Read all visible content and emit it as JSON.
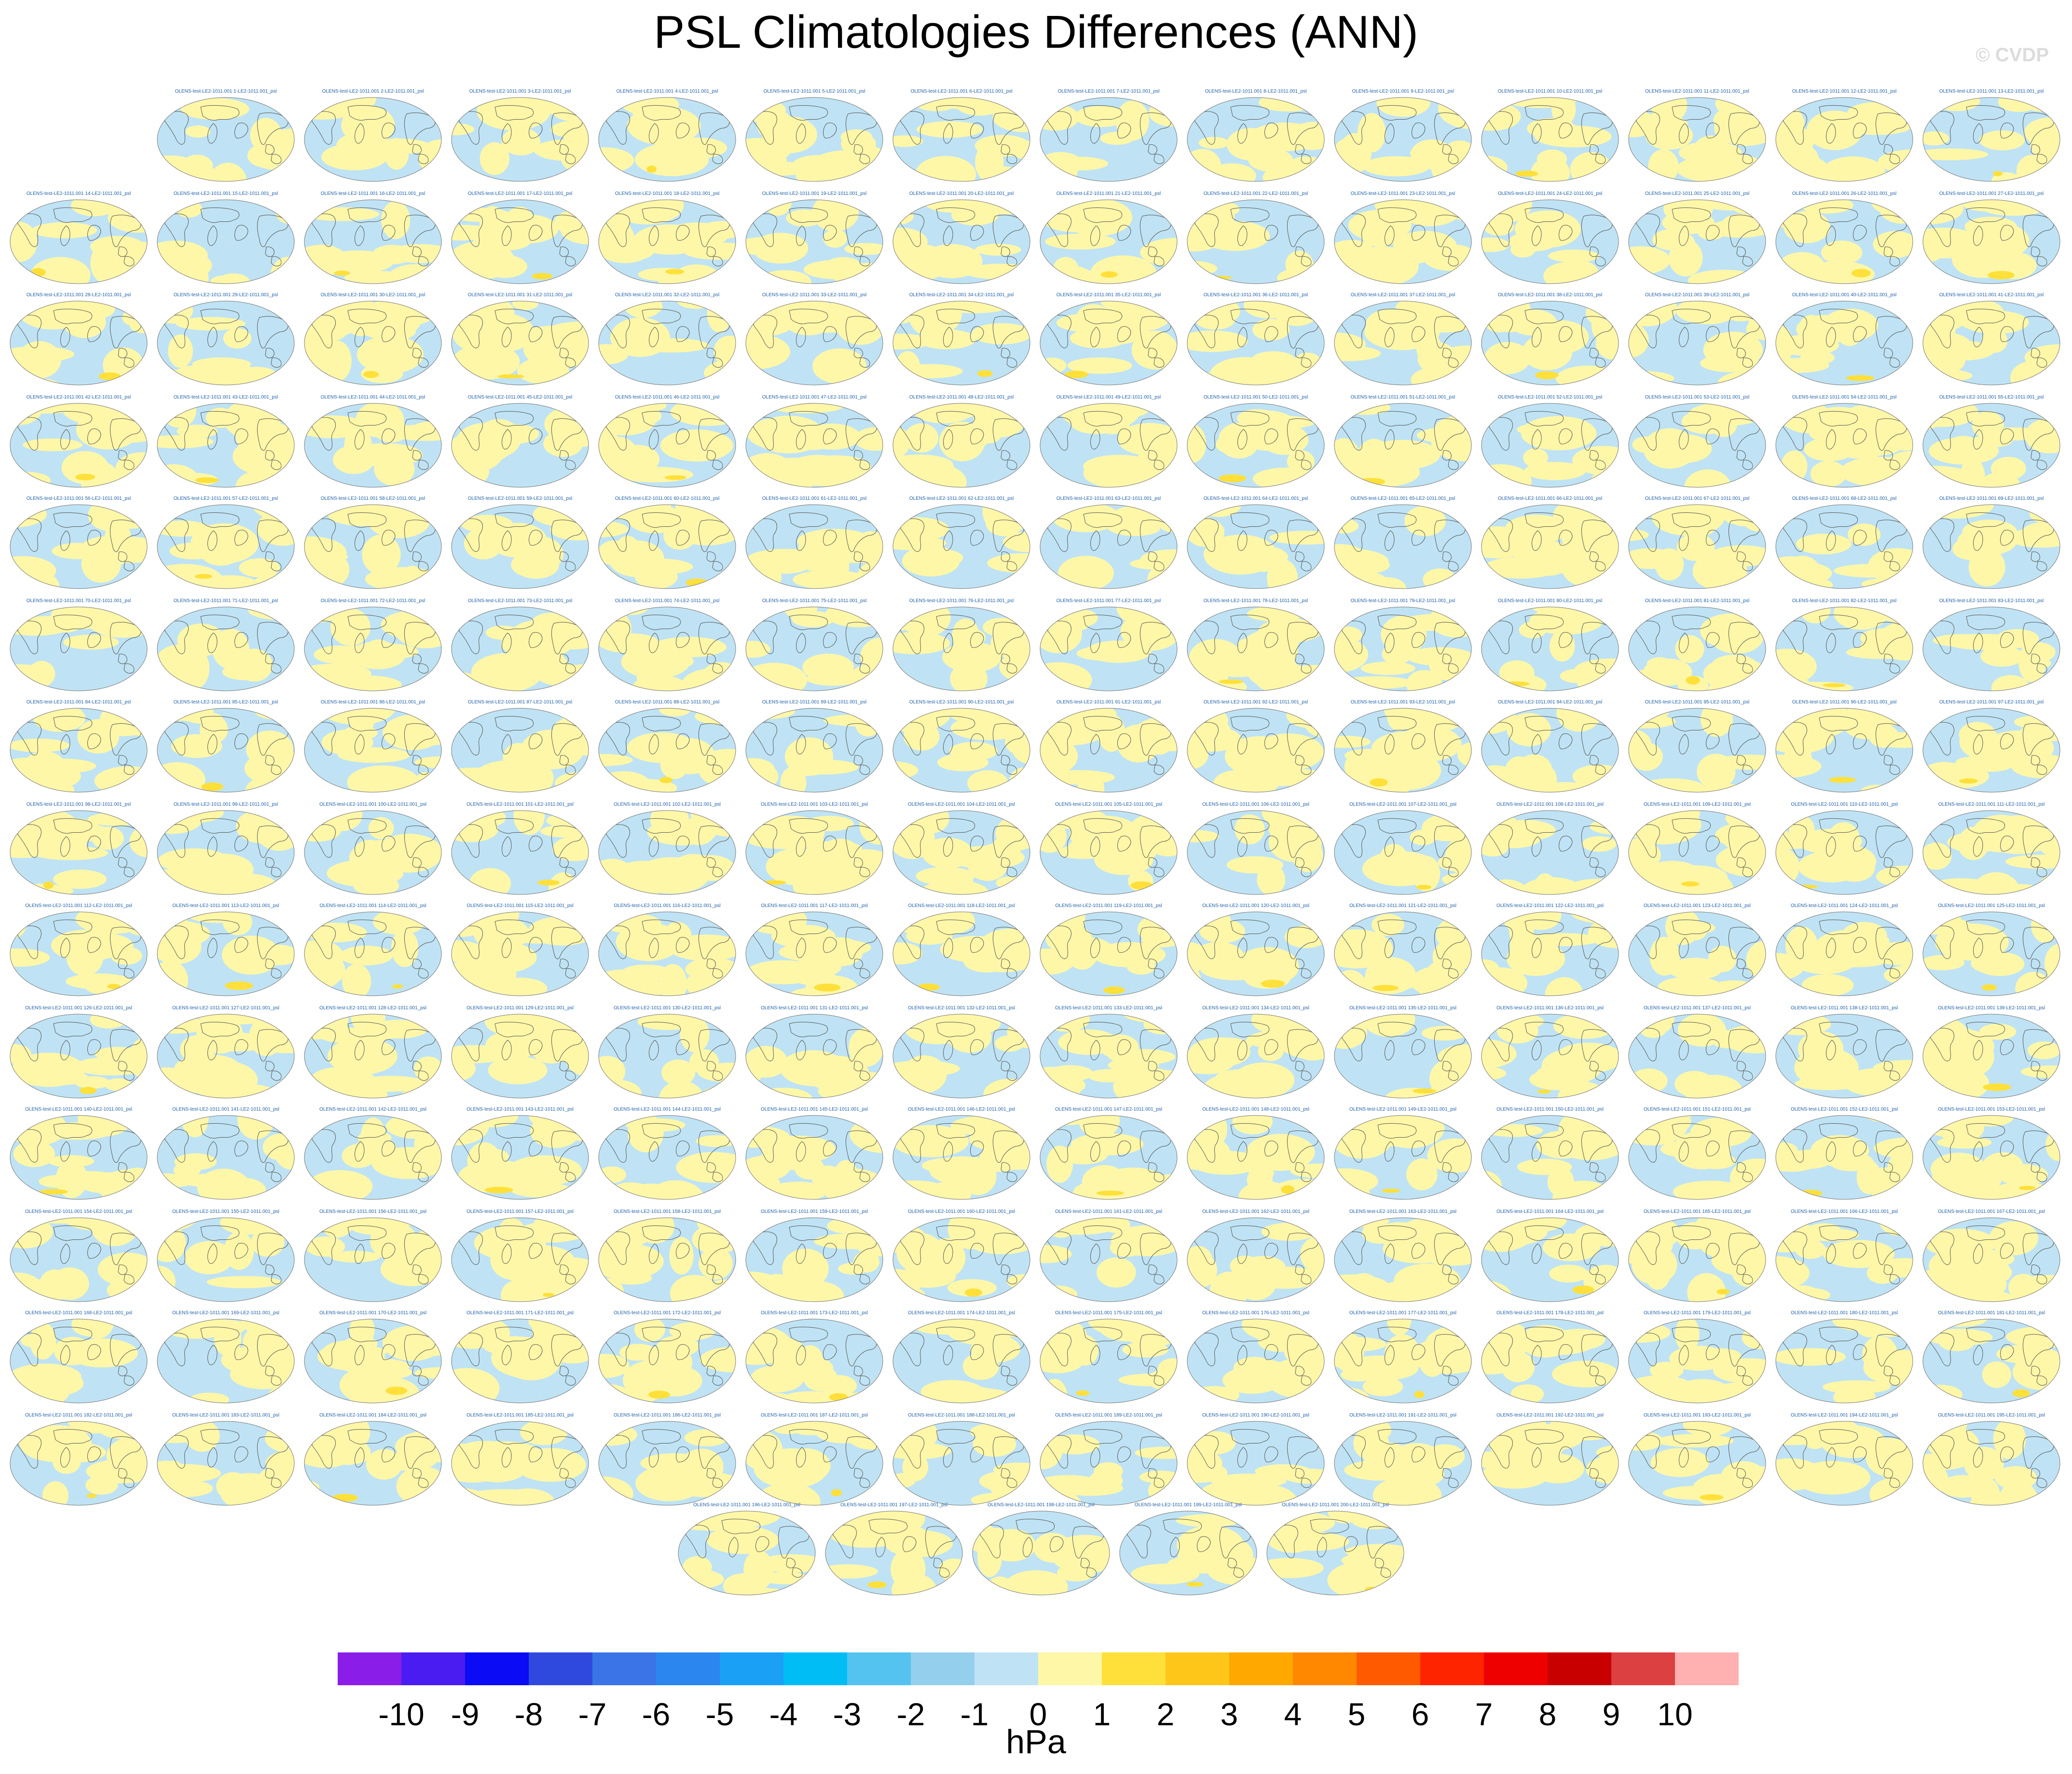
{
  "title": "PSL Climatologies Differences (ANN)",
  "watermark": "© CVDP",
  "panel_label_template": "OLENS-test-LE2-1011.001 {n}-LE2-1011.001_psl",
  "panel_count": 200,
  "colors": {
    "panel_label": "#1f5fa8",
    "ocean_background": "#bfe3f4",
    "positive_fill": "#fff7a8",
    "positive_strong": "#ffe03a",
    "coast": "#555555"
  },
  "legend": {
    "units": "hPa",
    "ticks": [
      "-10",
      "-9",
      "-8",
      "-7",
      "-6",
      "-5",
      "-4",
      "-3",
      "-2",
      "-1",
      "0",
      "1",
      "2",
      "3",
      "4",
      "5",
      "6",
      "7",
      "8",
      "9",
      "10"
    ],
    "colors": [
      "#8a1ee8",
      "#4a1cf2",
      "#0b0bf5",
      "#2f49de",
      "#3b74e6",
      "#2b86f0",
      "#1aa0f5",
      "#00bef5",
      "#55c3f0",
      "#95cfee",
      "#bfe3f4",
      "#fff7a8",
      "#ffe03a",
      "#ffc61a",
      "#ffa800",
      "#ff8800",
      "#ff5a00",
      "#ff2400",
      "#ee0000",
      "#c80000",
      "#dc4040",
      "#ffb0b0"
    ]
  }
}
